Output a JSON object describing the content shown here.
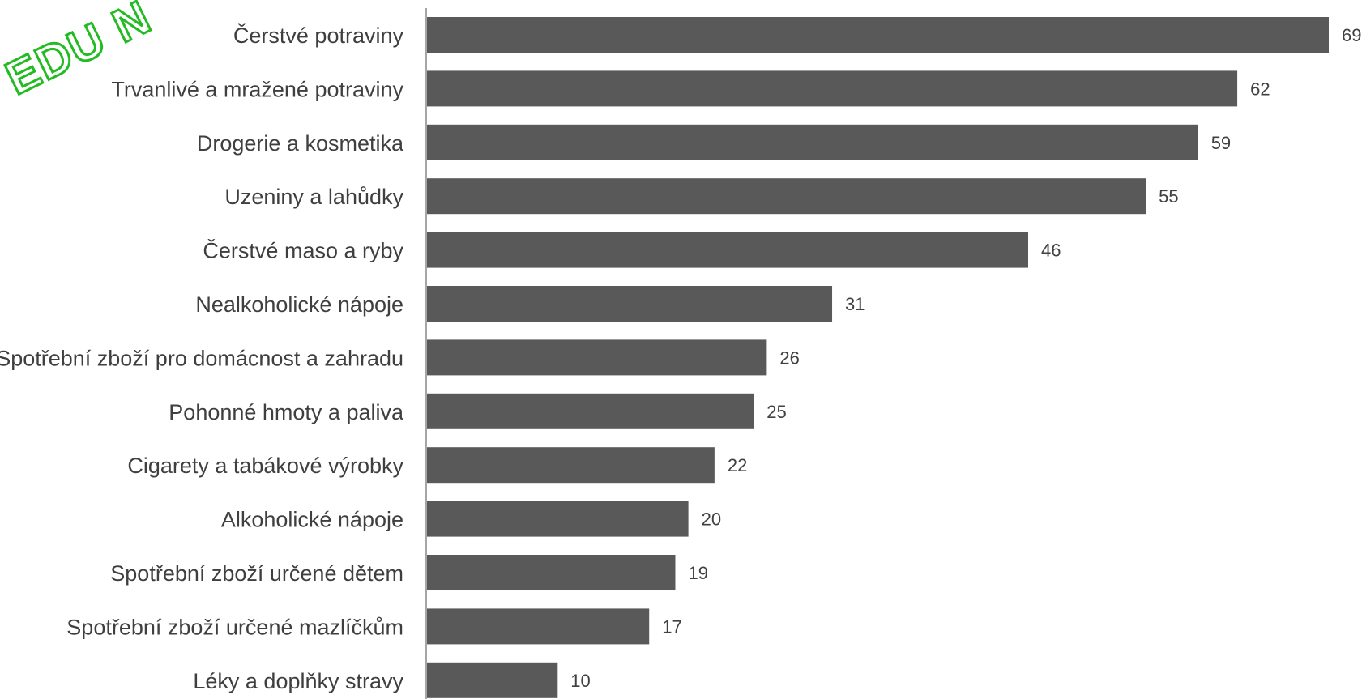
{
  "chart_data": {
    "type": "bar",
    "orientation": "horizontal",
    "title": "",
    "xlabel": "",
    "ylabel": "",
    "xlim": [
      0,
      69
    ],
    "grid": false,
    "legend": "none",
    "categories": [
      "Čerstvé potraviny",
      "Trvanlivé a mražené potraviny",
      "Drogerie a kosmetika",
      "Uzeniny a lahůdky",
      "Čerstvé maso a ryby",
      "Nealkoholické nápoje",
      "Spotřební zboží pro domácnost a zahradu",
      "Pohonné hmoty a paliva",
      "Cigarety a tabákové výrobky",
      "Alkoholické nápoje",
      "Spotřební zboží určené dětem",
      "Spotřební zboží určené mazlíčkům",
      "Léky a doplňky stravy"
    ],
    "values": [
      69,
      62,
      59,
      55,
      46,
      31,
      26,
      25,
      22,
      20,
      19,
      17,
      10
    ],
    "colors": {
      "bar": "#595959",
      "axis": "#a6a6a6"
    }
  },
  "watermark": {
    "text": "EDU N",
    "color": "#22bb22"
  }
}
